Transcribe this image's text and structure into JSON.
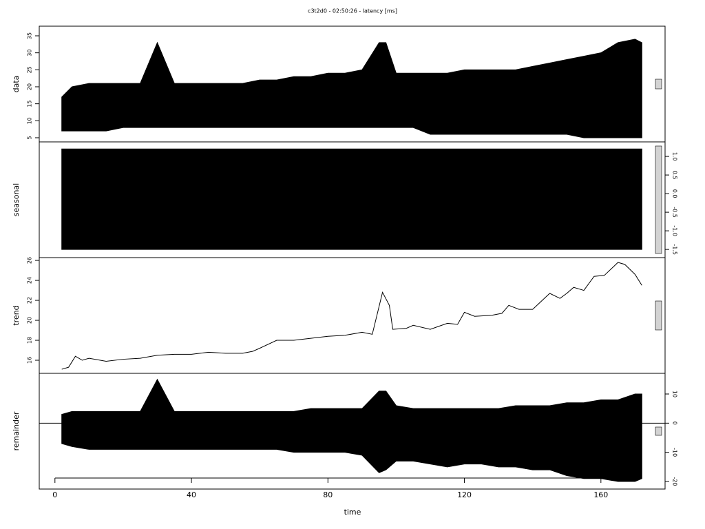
{
  "title": "c3t2d0 - 02:50:26 - latency [ms]",
  "xaxis": {
    "label": "time",
    "xlim": [
      -4.6,
      178.8
    ],
    "xticks": [
      0,
      40,
      80,
      120,
      160
    ]
  },
  "chart_data": [
    {
      "type": "band",
      "ylabel": "data",
      "axis_side": "left",
      "color": "#000000",
      "ylim": [
        3.78,
        37.84
      ],
      "yticks": [
        5,
        10,
        15,
        20,
        25,
        30,
        35
      ],
      "x": [
        2,
        5,
        10,
        15,
        20,
        25,
        30,
        35,
        40,
        45,
        50,
        55,
        60,
        65,
        70,
        75,
        80,
        85,
        90,
        95,
        97,
        100,
        105,
        110,
        115,
        120,
        125,
        130,
        135,
        140,
        145,
        150,
        155,
        160,
        165,
        170,
        172
      ],
      "high": [
        17,
        20,
        21,
        21,
        21,
        21,
        33,
        21,
        21,
        21,
        21,
        21,
        22,
        22,
        23,
        23,
        24,
        24,
        25,
        33,
        33,
        24,
        24,
        24,
        24,
        25,
        25,
        25,
        25,
        26,
        27,
        28,
        29,
        30,
        33,
        34,
        33
      ],
      "low": [
        7,
        7,
        7,
        7,
        8,
        8,
        8,
        8,
        8,
        8,
        8,
        8,
        8,
        8,
        8,
        8,
        8,
        8,
        8,
        8,
        8,
        8,
        8,
        6,
        6,
        6,
        6,
        6,
        6,
        6,
        6,
        6,
        5,
        5,
        5,
        5,
        5
      ]
    },
    {
      "type": "band",
      "ylabel": "seasonal",
      "axis_side": "right",
      "color": "#000000",
      "ylim": [
        -1.72,
        1.39
      ],
      "yticks": [
        {
          "value": -1.5,
          "label": "-1.5"
        },
        {
          "value": -1,
          "label": "-1.0"
        },
        {
          "value": -0.5,
          "label": "-0.5"
        },
        {
          "value": 0,
          "label": "0.0"
        },
        {
          "value": 0.5,
          "label": "0.5"
        },
        {
          "value": 1,
          "label": "1.0"
        }
      ],
      "x": [
        2,
        172
      ],
      "high": [
        1.2,
        1.2
      ],
      "low": [
        -1.5,
        -1.5
      ]
    },
    {
      "type": "line",
      "ylabel": "trend",
      "axis_side": "left",
      "color": "#000000",
      "ylim": [
        14.69,
        26.28
      ],
      "yticks": [
        16,
        18,
        20,
        22,
        24,
        26
      ],
      "x": [
        2,
        4,
        6,
        8,
        10,
        15,
        20,
        25,
        30,
        35,
        40,
        45,
        50,
        55,
        58,
        60,
        65,
        70,
        75,
        80,
        85,
        90,
        93,
        96,
        98,
        99,
        103,
        105,
        110,
        115,
        118,
        120,
        123,
        128,
        131,
        133,
        136,
        140,
        145,
        148,
        150,
        152,
        155,
        158,
        161,
        165,
        167,
        170,
        172
      ],
      "values": [
        15.1,
        15.3,
        16.4,
        16.0,
        16.2,
        15.9,
        16.1,
        16.2,
        16.5,
        16.6,
        16.6,
        16.8,
        16.7,
        16.7,
        16.9,
        17.2,
        18.0,
        18.0,
        18.2,
        18.4,
        18.5,
        18.8,
        18.6,
        22.8,
        21.5,
        19.1,
        19.2,
        19.5,
        19.1,
        19.7,
        19.6,
        20.8,
        20.4,
        20.5,
        20.7,
        21.5,
        21.1,
        21.1,
        22.7,
        22.2,
        22.7,
        23.3,
        23.0,
        24.4,
        24.5,
        25.8,
        25.6,
        24.6,
        23.5
      ]
    },
    {
      "type": "band",
      "ylabel": "remainder",
      "axis_side": "right",
      "color": "#000000",
      "hline": 0,
      "ylim": [
        -22.6,
        17.09
      ],
      "yticks": [
        -20,
        -10,
        0,
        10
      ],
      "x": [
        2,
        5,
        10,
        15,
        20,
        25,
        30,
        35,
        40,
        45,
        50,
        55,
        60,
        65,
        70,
        75,
        80,
        85,
        90,
        95,
        97,
        100,
        105,
        110,
        115,
        120,
        125,
        130,
        135,
        140,
        145,
        150,
        155,
        160,
        165,
        170,
        172
      ],
      "high": [
        3,
        4,
        4,
        4,
        4,
        4,
        15,
        4,
        4,
        4,
        4,
        4,
        4,
        4,
        4,
        5,
        5,
        5,
        5,
        11,
        11,
        6,
        5,
        5,
        5,
        5,
        5,
        5,
        6,
        6,
        6,
        7,
        7,
        8,
        8,
        10,
        10
      ],
      "low": [
        -7,
        -8,
        -9,
        -9,
        -9,
        -9,
        -9,
        -9,
        -9,
        -9,
        -9,
        -9,
        -9,
        -9,
        -10,
        -10,
        -10,
        -10,
        -11,
        -17,
        -16,
        -13,
        -13,
        -14,
        -15,
        -14,
        -14,
        -15,
        -15,
        -16,
        -16,
        -18,
        -19,
        -19,
        -20,
        -20,
        -19
      ]
    }
  ]
}
